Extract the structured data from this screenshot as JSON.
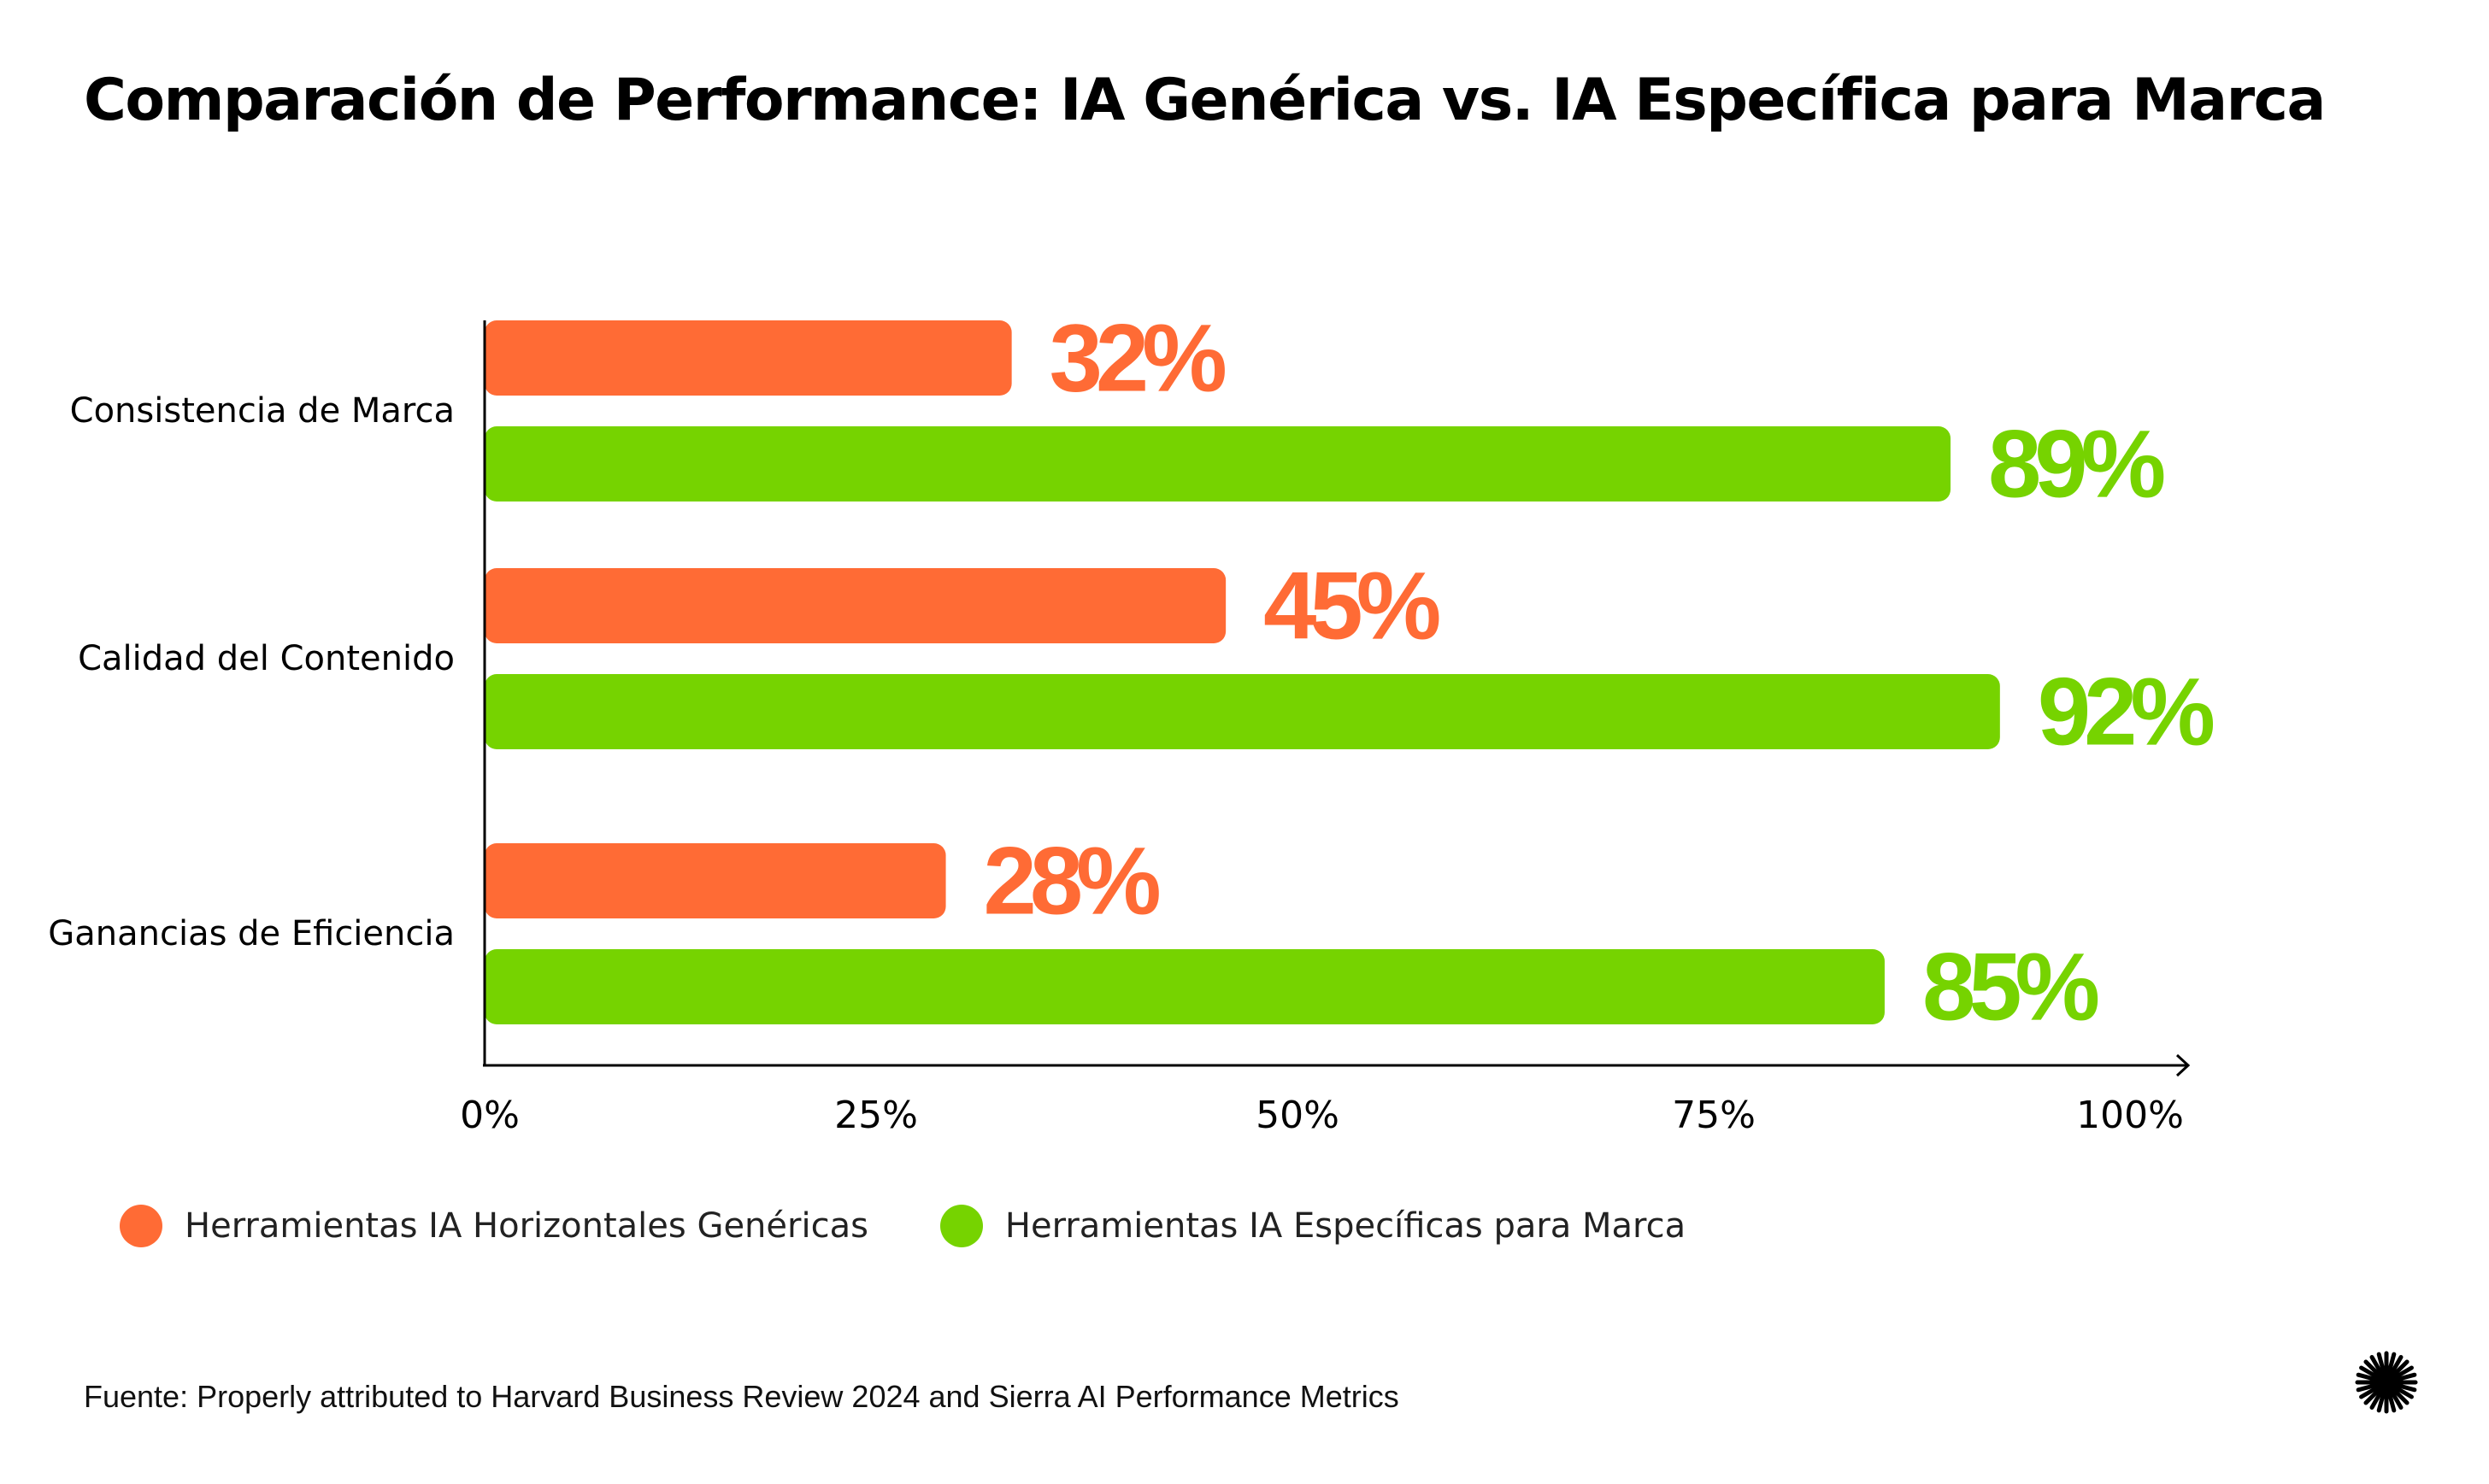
{
  "title": "Comparación de Performance: IA Genérica vs. IA Específica para Marca",
  "colors": {
    "generic": "#FF6B35",
    "brand": "#76D300",
    "axis": "#000000"
  },
  "legend": [
    {
      "label": "Herramientas IA Horizontales Genéricas",
      "color": "#FF6B35"
    },
    {
      "label": "Herramientas IA Específicas para Marca",
      "color": "#76D300"
    }
  ],
  "source": "Fuente: Properly attributed to Harvard Business Review 2024 and Sierra AI Performance Metrics",
  "logo_icon": "starburst-icon",
  "chart_data": {
    "type": "bar",
    "orientation": "horizontal",
    "title": "Comparación de Performance: IA Genérica vs. IA Específica para Marca",
    "categories": [
      "Consistencia de Marca",
      "Calidad del Contenido",
      "Ganancias de Eficiencia"
    ],
    "series": [
      {
        "name": "Herramientas IA Horizontales Genéricas",
        "color": "#FF6B35",
        "values": [
          32,
          45,
          28
        ],
        "labels": [
          "32%",
          "45%",
          "28%"
        ]
      },
      {
        "name": "Herramientas IA Específicas para Marca",
        "color": "#76D300",
        "values": [
          89,
          92,
          85
        ],
        "labels": [
          "89%",
          "92%",
          "85%"
        ]
      }
    ],
    "xlim": [
      0,
      100
    ],
    "xticks": [
      "0%",
      "25%",
      "50%",
      "75%",
      "100%"
    ],
    "xlabel": "",
    "ylabel": "",
    "grid": false,
    "legend_position": "bottom-left"
  }
}
